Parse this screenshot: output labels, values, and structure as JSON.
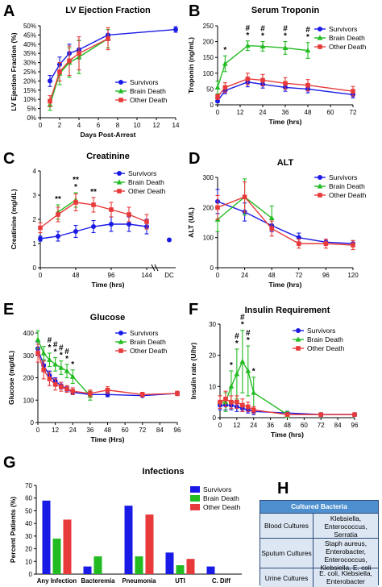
{
  "colors": {
    "survivors": "#1a1ae6",
    "brain": "#22bb22",
    "other": "#e83a3a"
  },
  "legend": [
    "Survivors",
    "Brain Death",
    "Other Death"
  ],
  "chart_data": [
    {
      "letter": "A",
      "title": "LV Ejection Fraction",
      "type": "line",
      "xlabel": "Days Post-Arrest",
      "ylabel": "LV Ejection Fraction (%)",
      "xlim": [
        0,
        14
      ],
      "ylim": [
        0,
        50
      ],
      "xticks": [
        "0",
        "2",
        "4",
        "6",
        "8",
        "10",
        "12",
        "14"
      ],
      "yticks": [
        "0%",
        "5%",
        "10%",
        "15%",
        "20%",
        "25%",
        "30%",
        "35%",
        "40%",
        "45%",
        "50%"
      ],
      "legend_position": "lower-right",
      "series": [
        {
          "name": "Survivors",
          "points": [
            [
              1,
              20
            ],
            [
              2,
              29
            ],
            [
              3,
              35
            ],
            [
              4,
              37
            ],
            [
              7,
              45
            ],
            [
              14,
              48
            ]
          ],
          "err": [
            3,
            4,
            5,
            5,
            3,
            1.5
          ]
        },
        {
          "name": "Brain Death",
          "points": [
            [
              1,
              7
            ],
            [
              2,
              24
            ],
            [
              3,
              30
            ],
            [
              4,
              33
            ],
            [
              7,
              43
            ]
          ],
          "err": [
            3,
            6,
            8,
            9,
            5
          ]
        },
        {
          "name": "Other Death",
          "points": [
            [
              1,
              9
            ],
            [
              2,
              25
            ],
            [
              3,
              31
            ],
            [
              4,
              35
            ],
            [
              7,
              43
            ]
          ],
          "err": [
            3,
            5,
            8,
            9,
            6
          ]
        }
      ]
    },
    {
      "letter": "B",
      "title": "Serum Troponin",
      "type": "line",
      "xlabel": "Time (hrs)",
      "ylabel": "Troponin (ng/mL)",
      "xlim": [
        0,
        72
      ],
      "ylim": [
        0,
        250
      ],
      "xticks": [
        "0",
        "12",
        "24",
        "36",
        "48",
        "60",
        "72"
      ],
      "yticks": [
        "0",
        "50",
        "100",
        "150",
        "200",
        "250"
      ],
      "legend_position": "top-right",
      "annotations": [
        {
          "x": 4,
          "text": [
            "*"
          ]
        },
        {
          "x": 16,
          "text": [
            "#",
            "*"
          ]
        },
        {
          "x": 24,
          "text": [
            "#",
            "*"
          ]
        },
        {
          "x": 36,
          "text": [
            "#",
            "*"
          ]
        },
        {
          "x": 48,
          "text": [
            "#",
            "*"
          ]
        }
      ],
      "series": [
        {
          "name": "Survivors",
          "points": [
            [
              0,
              12
            ],
            [
              4,
              45
            ],
            [
              16,
              72
            ],
            [
              24,
              65
            ],
            [
              36,
              55
            ],
            [
              48,
              50
            ],
            [
              72,
              32
            ]
          ],
          "err": [
            5,
            10,
            15,
            12,
            12,
            12,
            10
          ]
        },
        {
          "name": "Brain Death",
          "points": [
            [
              0,
              55
            ],
            [
              4,
              130
            ],
            [
              16,
              187
            ],
            [
              24,
              185
            ],
            [
              36,
              180
            ],
            [
              48,
              172
            ]
          ],
          "err": [
            20,
            25,
            15,
            15,
            20,
            25
          ]
        },
        {
          "name": "Other Death",
          "points": [
            [
              0,
              25
            ],
            [
              4,
              55
            ],
            [
              16,
              82
            ],
            [
              24,
              78
            ],
            [
              36,
              68
            ],
            [
              48,
              62
            ],
            [
              72,
              43
            ]
          ],
          "err": [
            8,
            15,
            18,
            18,
            18,
            18,
            15
          ]
        }
      ]
    },
    {
      "letter": "C",
      "title": "Creatinine",
      "type": "line",
      "xlabel": "Time (hrs)",
      "ylabel": "Creatinine (mg/dL)",
      "xlim": [
        0,
        144
      ],
      "ylim": [
        0,
        4
      ],
      "xticks": [
        "0",
        "48",
        "96",
        "144"
      ],
      "extra_xtick": "DC",
      "yticks": [
        "0",
        "1",
        "2",
        "3",
        "4"
      ],
      "legend_position": "top-right",
      "annotations": [
        {
          "x": 24,
          "text": [
            "**"
          ]
        },
        {
          "x": 48,
          "text": [
            "**",
            "*"
          ]
        },
        {
          "x": 72,
          "text": [
            "**"
          ]
        }
      ],
      "series": [
        {
          "name": "Survivors",
          "points": [
            [
              0,
              1.2
            ],
            [
              24,
              1.3
            ],
            [
              48,
              1.5
            ],
            [
              72,
              1.7
            ],
            [
              96,
              1.8
            ],
            [
              120,
              1.8
            ],
            [
              144,
              1.7
            ]
          ],
          "err": [
            0.1,
            0.2,
            0.25,
            0.25,
            0.3,
            0.3,
            0.3
          ],
          "dc": 1.15
        },
        {
          "name": "Brain Death",
          "points": [
            [
              24,
              2.3
            ],
            [
              48,
              2.8
            ]
          ],
          "err": [
            0.3,
            0.3
          ]
        },
        {
          "name": "Other Death",
          "points": [
            [
              0,
              1.65
            ],
            [
              24,
              2.2
            ],
            [
              48,
              2.7
            ],
            [
              72,
              2.6
            ],
            [
              96,
              2.4
            ],
            [
              120,
              2.2
            ],
            [
              144,
              1.9
            ]
          ],
          "err": [
            0.2,
            0.3,
            0.35,
            0.3,
            0.3,
            0.3,
            0.3
          ]
        }
      ]
    },
    {
      "letter": "D",
      "title": "ALT",
      "type": "line",
      "xlabel": "Time (hrs)",
      "ylabel": "ALT (U/L)",
      "xlim": [
        0,
        120
      ],
      "ylim": [
        0,
        300
      ],
      "xticks": [
        "0",
        "24",
        "48",
        "72",
        "96",
        "120"
      ],
      "yticks": [
        "0",
        "100",
        "200",
        "300"
      ],
      "legend_position": "top-right",
      "series": [
        {
          "name": "Survivors",
          "points": [
            [
              0,
              220
            ],
            [
              24,
              185
            ],
            [
              48,
              140
            ],
            [
              72,
              100
            ],
            [
              96,
              85
            ],
            [
              120,
              80
            ]
          ],
          "err": [
            40,
            30,
            20,
            15,
            10,
            10
          ]
        },
        {
          "name": "Brain Death",
          "points": [
            [
              0,
              160
            ],
            [
              24,
              235
            ],
            [
              48,
              165
            ]
          ],
          "err": [
            40,
            60,
            40
          ]
        },
        {
          "name": "Other Death",
          "points": [
            [
              0,
              200
            ],
            [
              24,
              235
            ],
            [
              48,
              130
            ],
            [
              72,
              80
            ],
            [
              96,
              80
            ],
            [
              120,
              75
            ]
          ],
          "err": [
            40,
            50,
            25,
            15,
            15,
            15
          ]
        }
      ]
    },
    {
      "letter": "E",
      "title": "Glucose",
      "type": "line",
      "xlabel": "Time (Hrs)",
      "ylabel": "Glucose (mg/dL)",
      "xlim": [
        0,
        96
      ],
      "ylim": [
        0,
        400
      ],
      "xticks": [
        "0",
        "12",
        "24",
        "36",
        "48",
        "60",
        "72",
        "84",
        "96"
      ],
      "yticks": [
        "0",
        "100",
        "200",
        "300",
        "400"
      ],
      "legend_position": "top-right",
      "annotations": [
        {
          "x": 8,
          "text": [
            "#",
            "*"
          ]
        },
        {
          "x": 12,
          "text": [
            "#",
            "*"
          ]
        },
        {
          "x": 16,
          "text": [
            "#",
            "*"
          ]
        },
        {
          "x": 20,
          "text": [
            "#",
            "*"
          ]
        },
        {
          "x": 24,
          "text": [
            "*"
          ]
        }
      ],
      "series": [
        {
          "name": "Survivors",
          "points": [
            [
              0,
              330
            ],
            [
              4,
              255
            ],
            [
              8,
              210
            ],
            [
              12,
              185
            ],
            [
              16,
              165
            ],
            [
              20,
              150
            ],
            [
              24,
              135
            ],
            [
              36,
              125
            ],
            [
              48,
              125
            ],
            [
              72,
              120
            ],
            [
              96,
              130
            ]
          ],
          "err": [
            30,
            25,
            20,
            15,
            15,
            10,
            10,
            10,
            10,
            5,
            5
          ]
        },
        {
          "name": "Brain Death",
          "points": [
            [
              0,
              370
            ],
            [
              4,
              310
            ],
            [
              8,
              280
            ],
            [
              12,
              260
            ],
            [
              16,
              245
            ],
            [
              20,
              230
            ],
            [
              24,
              205
            ],
            [
              36,
              120
            ]
          ],
          "err": [
            40,
            30,
            30,
            30,
            30,
            30,
            30,
            20
          ]
        },
        {
          "name": "Other Death",
          "points": [
            [
              0,
              310
            ],
            [
              4,
              235
            ],
            [
              8,
              195
            ],
            [
              12,
              170
            ],
            [
              16,
              160
            ],
            [
              20,
              150
            ],
            [
              24,
              140
            ],
            [
              36,
              130
            ],
            [
              48,
              145
            ],
            [
              72,
              125
            ],
            [
              96,
              130
            ]
          ],
          "err": [
            40,
            40,
            30,
            25,
            20,
            15,
            15,
            15,
            15,
            10,
            10
          ]
        }
      ]
    },
    {
      "letter": "F",
      "title": "Insulin Requirement",
      "type": "line",
      "xlabel": "Time (hrs)",
      "ylabel": "Insulin rate (U/hr)",
      "xlim": [
        0,
        96
      ],
      "ylim": [
        0,
        30
      ],
      "xticks": [
        "0",
        "12",
        "24",
        "36",
        "48",
        "60",
        "72",
        "84",
        "96"
      ],
      "yticks": [
        "0",
        "10",
        "20",
        "30"
      ],
      "legend_position": "top-right",
      "annotations": [
        {
          "x": 8,
          "text": [
            "*"
          ]
        },
        {
          "x": 12,
          "text": [
            "#",
            "*"
          ]
        },
        {
          "x": 16,
          "text": [
            "#",
            "*"
          ]
        },
        {
          "x": 20,
          "text": [
            "#",
            "*"
          ]
        },
        {
          "x": 24,
          "text": [
            "*"
          ]
        }
      ],
      "series": [
        {
          "name": "Survivors",
          "points": [
            [
              0,
              4
            ],
            [
              4,
              4
            ],
            [
              8,
              4
            ],
            [
              12,
              3.5
            ],
            [
              16,
              3
            ],
            [
              20,
              2.5
            ],
            [
              24,
              2
            ],
            [
              48,
              1.5
            ],
            [
              72,
              1
            ],
            [
              96,
              1
            ]
          ],
          "err": [
            1.5,
            1.5,
            1.5,
            1.5,
            1,
            1,
            1,
            0.5,
            0.5,
            0.5
          ]
        },
        {
          "name": "Brain Death",
          "points": [
            [
              0,
              5
            ],
            [
              4,
              5
            ],
            [
              8,
              10
            ],
            [
              12,
              14
            ],
            [
              16,
              18
            ],
            [
              20,
              15
            ],
            [
              24,
              8
            ],
            [
              48,
              1
            ]
          ],
          "err": [
            2,
            3,
            5,
            8,
            10,
            8,
            5,
            1
          ]
        },
        {
          "name": "Other Death",
          "points": [
            [
              0,
              5
            ],
            [
              4,
              6
            ],
            [
              8,
              5
            ],
            [
              12,
              5
            ],
            [
              16,
              4
            ],
            [
              20,
              3.5
            ],
            [
              24,
              2.5
            ],
            [
              48,
              1
            ],
            [
              72,
              1
            ],
            [
              96,
              1
            ]
          ],
          "err": [
            2,
            2.5,
            2,
            2,
            2,
            1.5,
            1,
            0.5,
            0.5,
            0.5
          ]
        }
      ]
    },
    {
      "letter": "G",
      "title": "Infections",
      "type": "bar",
      "ylabel": "Percent Patients (%)",
      "ylim": [
        0,
        70
      ],
      "yticks": [
        "0",
        "10",
        "20",
        "30",
        "40",
        "50",
        "60",
        "70"
      ],
      "categories": [
        "Any Infection",
        "Bacteremia",
        "Pneumonia",
        "UTI",
        "C. Diff"
      ],
      "legend_position": "top-right",
      "series": [
        {
          "name": "Survivors",
          "values": [
            58,
            6,
            54,
            17,
            6
          ]
        },
        {
          "name": "Brain Death",
          "values": [
            28,
            14,
            14,
            7,
            0
          ]
        },
        {
          "name": "Other Death",
          "values": [
            43,
            0,
            47,
            12,
            0
          ]
        }
      ]
    }
  ],
  "table": {
    "letter": "H",
    "header": "Cultured Bacteria",
    "rows": [
      {
        "label": "Blood Cultures",
        "value": "Klebsiella, Enterococcus, Serratia"
      },
      {
        "label": "Sputum Cultures",
        "value": "Staph aureus, Enterobacter, Enterococcus, Klebsiella, E. coli"
      },
      {
        "label": "Urine Cultures",
        "value": "E. coli, Klebsiella, Enterobacter"
      }
    ]
  }
}
